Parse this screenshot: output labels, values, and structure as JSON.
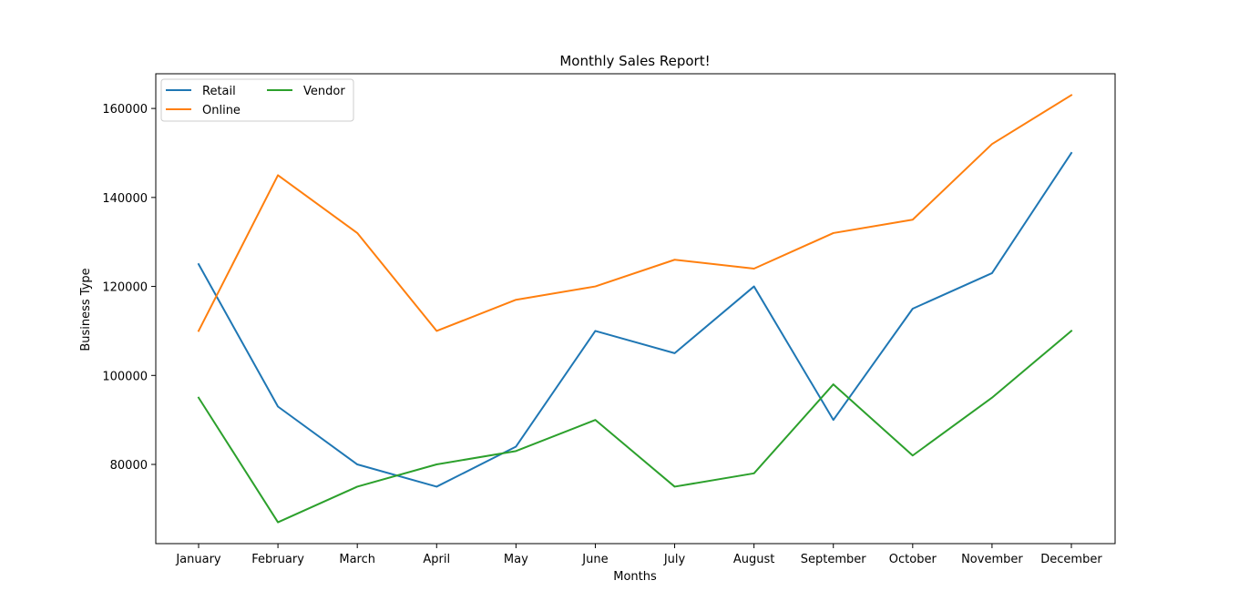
{
  "chart_data": {
    "type": "line",
    "title": "Monthly Sales Report!",
    "xlabel": "Months",
    "ylabel": "Business Type",
    "categories": [
      "January",
      "February",
      "March",
      "April",
      "May",
      "June",
      "July",
      "August",
      "September",
      "October",
      "November",
      "December"
    ],
    "series": [
      {
        "name": "Retail",
        "color": "#1f77b4",
        "values": [
          125000,
          93000,
          80000,
          75000,
          84000,
          110000,
          105000,
          120000,
          90000,
          115000,
          123000,
          150000
        ]
      },
      {
        "name": "Online",
        "color": "#ff7f0e",
        "values": [
          110000,
          145000,
          132000,
          110000,
          117000,
          120000,
          126000,
          124000,
          132000,
          135000,
          152000,
          163000
        ]
      },
      {
        "name": "Vendor",
        "color": "#2ca02c",
        "values": [
          95000,
          67000,
          75000,
          80000,
          83000,
          90000,
          75000,
          78000,
          98000,
          82000,
          95000,
          110000
        ]
      }
    ],
    "yticks": [
      80000,
      100000,
      120000,
      140000,
      160000
    ],
    "ylim": [
      62200,
      167800
    ],
    "grid": false,
    "legend": {
      "position": "top-left",
      "columns": 2
    }
  }
}
